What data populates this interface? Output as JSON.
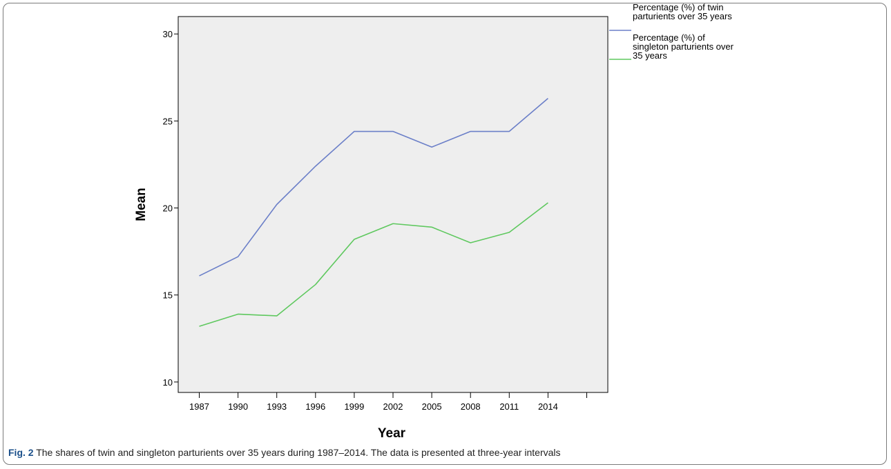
{
  "chart_data": {
    "type": "line",
    "x": [
      "1987",
      "1990",
      "1993",
      "1996",
      "1999",
      "2002",
      "2005",
      "2008",
      "2011",
      "2014"
    ],
    "x_ticks": [
      "1987",
      "1990",
      "1993",
      "1996",
      "1999",
      "2002",
      "2005",
      "2008",
      "2011",
      "2014",
      ""
    ],
    "ylim": [
      9.4,
      31.0
    ],
    "y_ticks": [
      10,
      15,
      20,
      25,
      30
    ],
    "xlabel": "Year",
    "ylabel": "Mean",
    "grid": false,
    "legend_position": "top-right outside",
    "series": [
      {
        "name": "Percentage (%) of twin parturients over 35 years",
        "legend_lines": [
          "Percentage (%) of twin",
          "parturients over 35 years"
        ],
        "color": "#6b7fc8",
        "values": [
          16.1,
          17.2,
          20.2,
          22.4,
          24.4,
          24.4,
          23.5,
          24.4,
          24.4,
          26.3
        ]
      },
      {
        "name": "Percentage (%) of singleton parturients over 35 years",
        "legend_lines": [
          "Percentage (%) of",
          "singleton parturients over",
          "35 years"
        ],
        "color": "#5ec85e",
        "values": [
          13.2,
          13.9,
          13.8,
          15.6,
          18.2,
          19.1,
          18.9,
          18.0,
          18.6,
          20.3
        ]
      }
    ]
  },
  "caption": {
    "label": "Fig. 2",
    "text": " The shares of twin and singleton parturients over 35 years during 1987–2014. The data is presented at three-year intervals"
  }
}
